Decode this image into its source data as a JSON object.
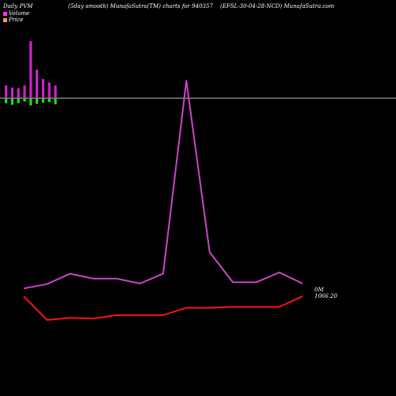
{
  "header": {
    "left": "Daily PVM",
    "center": "(5day smooth) MunafaSutra(TM) charts for 940357",
    "right": "(EFSL-30-04-28-NCD) MunafaSutra.com"
  },
  "legend": [
    {
      "label": "Volume",
      "color": "#ff33ff"
    },
    {
      "label": "Price",
      "color": "#ff9955"
    }
  ],
  "end_labels": {
    "volume": "0M",
    "price": "1066.20"
  },
  "colors": {
    "volume_line": "#cc44cc",
    "price_line": "#ff1111",
    "bar_up": "#cc22cc",
    "bar_down": "#22dd22",
    "baseline": "#ffffff"
  },
  "chart_data": {
    "type": "line",
    "bars": {
      "up": [
        0.9,
        0.75,
        0.7,
        0.9,
        4.0,
        2.0,
        1.35,
        1.1,
        0.9
      ],
      "down": [
        0.45,
        0.6,
        0.45,
        0.3,
        0.65,
        0.5,
        0.4,
        0.35,
        0.55
      ]
    },
    "series": [
      {
        "name": "Volume",
        "values": [
          3.2,
          3.9,
          5.6,
          4.8,
          4.8,
          4.0,
          5.6,
          37.0,
          9.1,
          4.2,
          4.2,
          5.8,
          4.0
        ]
      },
      {
        "name": "Price",
        "values": [
          1066.0,
          1039.0,
          1041.5,
          1040.5,
          1044.5,
          1044.5,
          1044.5,
          1053.0,
          1053.0,
          1054.0,
          1054.0,
          1054.0,
          1066.2
        ]
      }
    ]
  }
}
